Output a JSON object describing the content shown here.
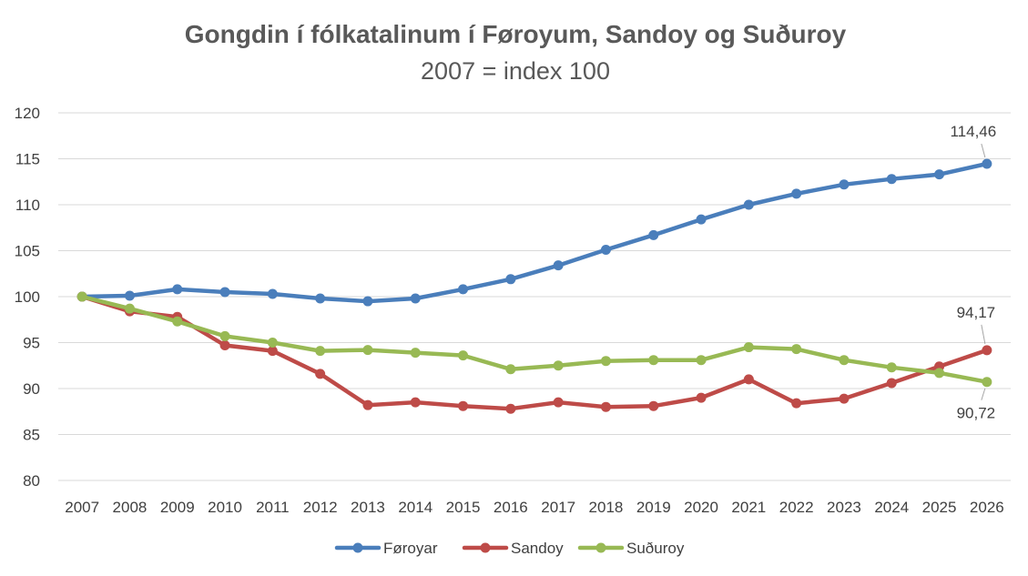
{
  "chart_data": {
    "type": "line",
    "title": "Gongdin í fólkatalinum í Føroyum, Sandoy og Suðuroy",
    "subtitle": "2007 = index 100",
    "xlabel": "",
    "ylabel": "",
    "ylim": [
      80,
      120
    ],
    "y_ticks": [
      80,
      85,
      90,
      95,
      100,
      105,
      110,
      115,
      120
    ],
    "grid": true,
    "legend_position": "bottom",
    "categories": [
      "2007",
      "2008",
      "2009",
      "2010",
      "2011",
      "2012",
      "2013",
      "2014",
      "2015",
      "2016",
      "2017",
      "2018",
      "2019",
      "2020",
      "2021",
      "2022",
      "2023",
      "2024",
      "2025",
      "2026"
    ],
    "series": [
      {
        "name": "Føroyar",
        "color": "#4a7ebb",
        "values": [
          100,
          100.1,
          100.8,
          100.5,
          100.3,
          99.8,
          99.5,
          99.8,
          100.8,
          101.9,
          103.4,
          105.1,
          106.7,
          108.4,
          110.0,
          111.2,
          112.2,
          112.8,
          113.3,
          114.46
        ]
      },
      {
        "name": "Sandoy",
        "color": "#be4b48",
        "values": [
          100,
          98.4,
          97.8,
          94.7,
          94.1,
          91.6,
          88.2,
          88.5,
          88.1,
          87.8,
          88.5,
          88.0,
          88.1,
          89.0,
          91.0,
          88.4,
          88.9,
          90.6,
          92.4,
          94.17
        ]
      },
      {
        "name": "Suðuroy",
        "color": "#98b954",
        "values": [
          100,
          98.7,
          97.3,
          95.7,
          95.0,
          94.1,
          94.2,
          93.9,
          93.6,
          92.1,
          92.5,
          93.0,
          93.1,
          93.1,
          94.5,
          94.3,
          93.1,
          92.3,
          91.7,
          90.72
        ]
      }
    ],
    "data_labels": [
      {
        "series": 0,
        "index": 19,
        "text": "114,46"
      },
      {
        "series": 1,
        "index": 19,
        "text": "94,17"
      },
      {
        "series": 2,
        "index": 19,
        "text": "90,72"
      }
    ]
  }
}
